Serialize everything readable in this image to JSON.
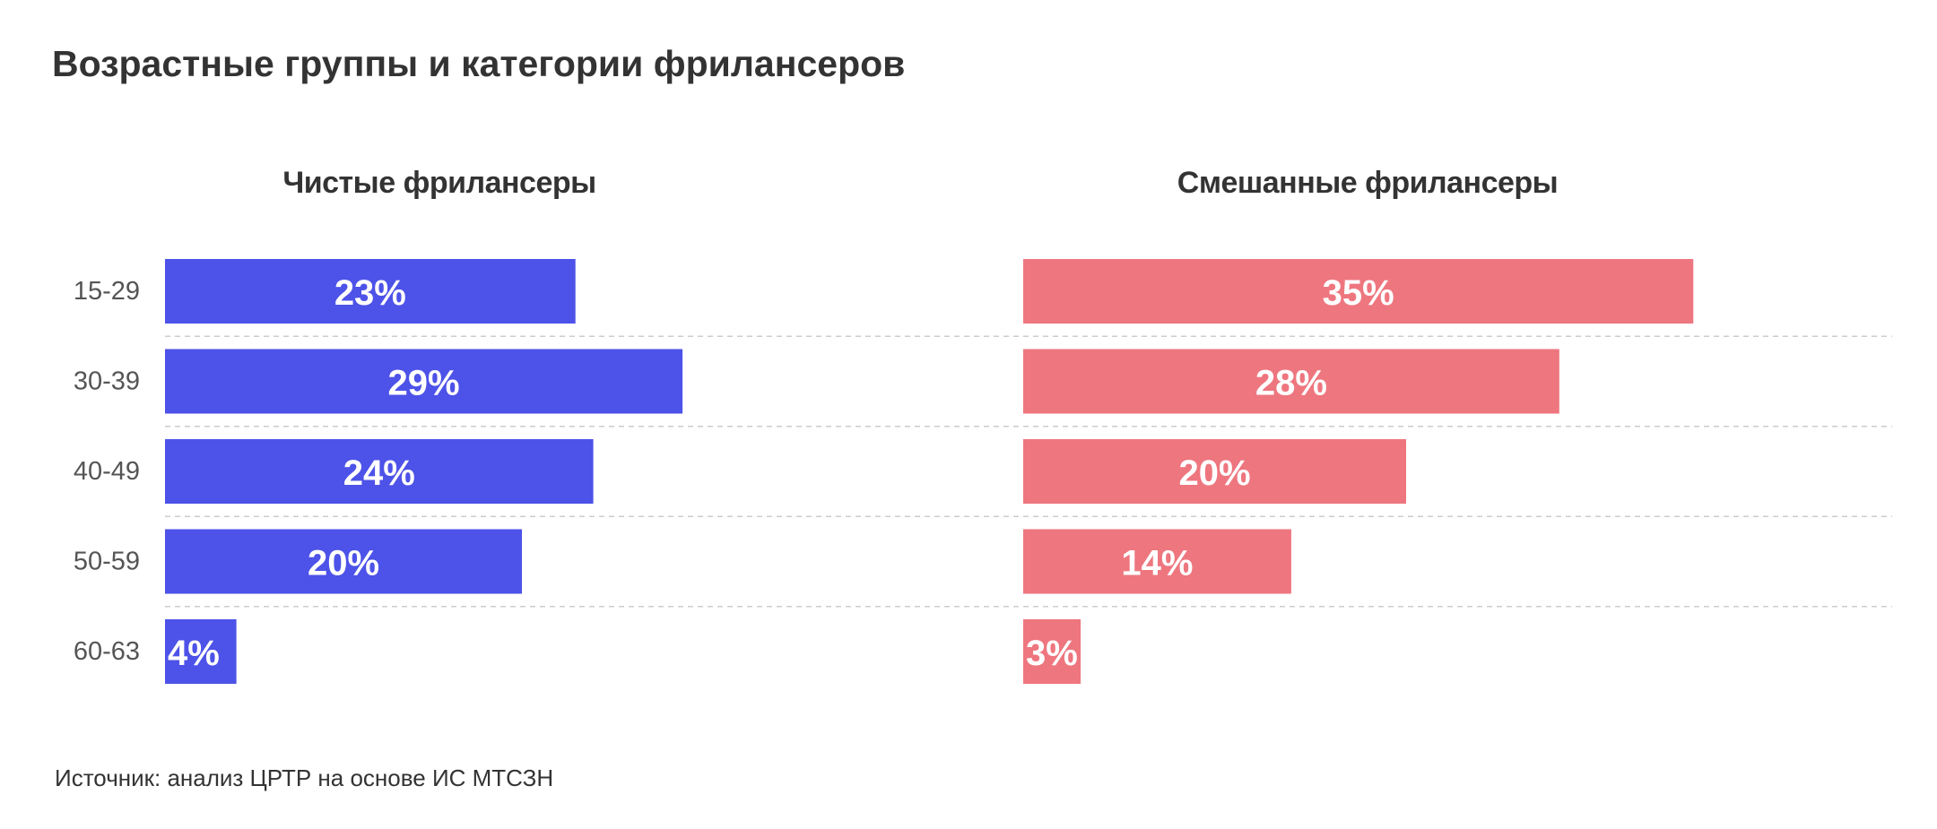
{
  "title": "Возрастные группы и категории фрилансеров",
  "source": "Источник: анализ ЦРТР на основе ИС МТСЗН",
  "colors": {
    "pure": "#4d52e8",
    "mixed": "#ee767f",
    "grid": "#cccccc",
    "text": "#333333",
    "label": "#ffffff"
  },
  "chart_data": [
    {
      "type": "bar",
      "orientation": "horizontal",
      "title": "Чистые фрилансеры",
      "categories": [
        "15-29",
        "30-39",
        "40-49",
        "50-59",
        "60-63"
      ],
      "values": [
        23,
        29,
        24,
        20,
        4
      ],
      "data_labels": [
        "23%",
        "29%",
        "24%",
        "20%",
        "4%"
      ],
      "unit": "%",
      "color": "#4d52e8",
      "grid": "horizontal dashed separators"
    },
    {
      "type": "bar",
      "orientation": "horizontal",
      "title": "Смешанные фрилансеры",
      "categories": [
        "15-29",
        "30-39",
        "40-49",
        "50-59",
        "60-63"
      ],
      "values": [
        35,
        28,
        20,
        14,
        3
      ],
      "data_labels": [
        "35%",
        "28%",
        "20%",
        "14%",
        "3%"
      ],
      "unit": "%",
      "color": "#ee767f",
      "grid": "horizontal dashed separators"
    }
  ]
}
